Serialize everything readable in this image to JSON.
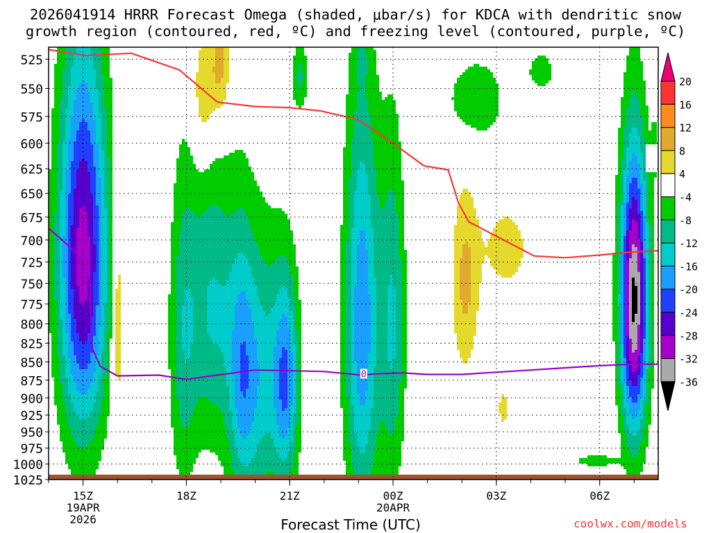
{
  "title": {
    "line1": "2026041914 HRRR Forecast Omega (shaded, μbar/s) for KDCA with dendritic snow",
    "line2": "growth region (contoured, red, ºC) and freezing level (contoured, purple, ºC)"
  },
  "credit": "coolwx.com/models",
  "chart_data": {
    "type": "heatmap",
    "title": "2026041914 HRRR Forecast Omega (shaded, μbar/s) for KDCA with dendritic snow growth region (contoured, red, ºC) and freezing level (contoured, purple, ºC)",
    "xlabel": "Forecast Time (UTC)",
    "ylabel": "",
    "x_ticks": [
      {
        "label": "15Z",
        "sub": [
          "19APR",
          "2026"
        ],
        "hour": 1
      },
      {
        "label": "18Z",
        "sub": [],
        "hour": 4
      },
      {
        "label": "21Z",
        "sub": [],
        "hour": 7
      },
      {
        "label": "00Z",
        "sub": [
          "20APR"
        ],
        "hour": 10
      },
      {
        "label": "03Z",
        "sub": [],
        "hour": 13
      },
      {
        "label": "06Z",
        "sub": [],
        "hour": 16
      }
    ],
    "xlim": [
      0,
      17.7
    ],
    "y_ticks": [
      525,
      550,
      575,
      600,
      625,
      650,
      675,
      700,
      725,
      750,
      775,
      800,
      825,
      850,
      875,
      900,
      925,
      950,
      975,
      1000,
      1025
    ],
    "ylim": [
      1025,
      515
    ],
    "yscale": "log-pressure",
    "grid": true,
    "legend_position": "right",
    "colorbar": {
      "levels": [
        20,
        16,
        12,
        8,
        4,
        -4,
        -8,
        -12,
        -16,
        -20,
        -24,
        -28,
        -32,
        -36
      ],
      "colors": [
        "#ff3333",
        "#ff8c1a",
        "#e0aa2e",
        "#e5d92e",
        "#ffffff",
        "#00cc00",
        "#00bb88",
        "#00cccc",
        "#1a9fff",
        "#2040ff",
        "#5500cc",
        "#aa00cc",
        "#aaaaaa",
        "#000000"
      ],
      "over_color": "#ee0077",
      "under_color": "#000000"
    },
    "series": [
      {
        "name": "dendritic snow growth region (red, ºC)",
        "color": "#ff3333",
        "points": [
          [
            0.0,
            517
          ],
          [
            1.1,
            522
          ],
          [
            2.4,
            520
          ],
          [
            3.8,
            534
          ],
          [
            4.9,
            562
          ],
          [
            6.0,
            566
          ],
          [
            7.0,
            567
          ],
          [
            7.9,
            570
          ],
          [
            9.0,
            578
          ],
          [
            10.0,
            600
          ],
          [
            10.9,
            622
          ],
          [
            11.6,
            626
          ],
          [
            11.9,
            660
          ],
          [
            12.2,
            680
          ],
          [
            14.1,
            718
          ],
          [
            15.0,
            720
          ],
          [
            16.0,
            717
          ],
          [
            16.8,
            714
          ],
          [
            17.7,
            712
          ]
        ]
      },
      {
        "name": "freezing level (purple, ºC)",
        "color": "#9900cc",
        "points": [
          [
            0.0,
            687
          ],
          [
            0.8,
            714
          ],
          [
            1.2,
            745
          ],
          [
            1.25,
            830
          ],
          [
            1.5,
            856
          ],
          [
            2.0,
            869
          ],
          [
            3.2,
            868
          ],
          [
            4.0,
            874
          ],
          [
            4.9,
            868
          ],
          [
            6.0,
            861
          ],
          [
            7.0,
            862
          ],
          [
            8.0,
            863
          ],
          [
            9.1,
            868
          ],
          [
            9.6,
            866
          ],
          [
            10.3,
            865
          ],
          [
            11.0,
            867
          ],
          [
            12.0,
            867
          ],
          [
            13.0,
            864
          ],
          [
            14.0,
            861
          ],
          [
            15.0,
            858
          ],
          [
            16.0,
            855
          ],
          [
            17.0,
            853
          ],
          [
            17.7,
            853
          ]
        ],
        "label": {
          "text": "0",
          "x": 9.15,
          "p": 866
        }
      }
    ],
    "omega_cells": [
      {
        "x": 1.0,
        "p": 720,
        "dx": 1.05,
        "dp": 330,
        "min": -30
      },
      {
        "x": 2.0,
        "p": 790,
        "dx": 0.25,
        "dp": 230,
        "max": 9
      },
      {
        "x": 3.9,
        "p": 820,
        "dx": 0.6,
        "dp": 320,
        "min": -9
      },
      {
        "x": 4.75,
        "p": 780,
        "dx": 1.1,
        "dp": 270,
        "min": -12
      },
      {
        "x": 5.6,
        "p": 870,
        "dx": 0.55,
        "dp": 290,
        "min": -9
      },
      {
        "x": 6.1,
        "p": 870,
        "dx": 1.1,
        "dp": 280,
        "min": -14
      },
      {
        "x": 6.9,
        "p": 875,
        "dx": 0.55,
        "dp": 220,
        "min": -17
      },
      {
        "x": 9.1,
        "p": 800,
        "dx": 0.75,
        "dp": 400,
        "min": -19
      },
      {
        "x": 10.0,
        "p": 800,
        "dx": 0.55,
        "dp": 330,
        "min": -12
      },
      {
        "x": 4.5,
        "p": 555,
        "dx": 0.5,
        "dp": 85,
        "max": 9
      },
      {
        "x": 5.0,
        "p": 530,
        "dx": 0.45,
        "dp": 75,
        "max": 10
      },
      {
        "x": 7.3,
        "p": 540,
        "dx": 0.35,
        "dp": 45,
        "min": -9
      },
      {
        "x": 9.1,
        "p": 525,
        "dx": 0.2,
        "dp": 25,
        "min": -5
      },
      {
        "x": 12.1,
        "p": 748,
        "dx": 0.6,
        "dp": 170,
        "max": 9
      },
      {
        "x": 13.3,
        "p": 710,
        "dx": 1.1,
        "dp": 80,
        "max": 6
      },
      {
        "x": 13.2,
        "p": 915,
        "dx": 0.25,
        "dp": 45,
        "max": 6
      },
      {
        "x": 12.4,
        "p": 560,
        "dx": 1.25,
        "dp": 55,
        "min": -8
      },
      {
        "x": 14.3,
        "p": 535,
        "dx": 0.7,
        "dp": 30,
        "min": -6
      },
      {
        "x": 17.0,
        "p": 770,
        "dx": 0.6,
        "dp": 260,
        "min": -37
      },
      {
        "x": 15.9,
        "p": 995,
        "dx": 0.9,
        "dp": 14,
        "min": -8
      },
      {
        "x": 17.68,
        "p": 590,
        "dx": 0.2,
        "dp": 60,
        "min": -8
      }
    ],
    "terrain": {
      "color": "#a0522d",
      "pressure": 1017
    }
  }
}
